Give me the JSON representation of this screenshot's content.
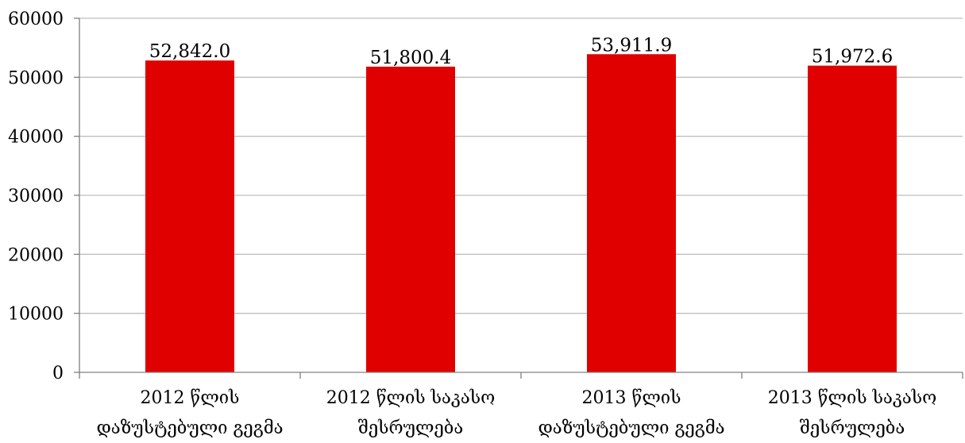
{
  "chart_data": {
    "type": "bar",
    "title": "",
    "xlabel": "",
    "ylabel": "",
    "categories": [
      [
        "2012 წლის",
        "დაზუსტებული გეგმა"
      ],
      [
        "2012 წლის საკასო",
        "შესრულება"
      ],
      [
        "2013 წლის",
        "დაზუსტებული გეგმა"
      ],
      [
        "2013 წლის საკასო",
        "შესრულება"
      ]
    ],
    "values": [
      52842.0,
      51800.4,
      53911.9,
      51972.6
    ],
    "value_labels": [
      "52,842.0",
      "51,800.4",
      "53,911.9",
      "51,972.6"
    ],
    "ylim": [
      0,
      60000
    ],
    "yticks": [
      0,
      10000,
      20000,
      30000,
      40000,
      50000,
      60000
    ],
    "grid": true,
    "legend": "none",
    "colors": {
      "bar": "#E00000",
      "grid": "#BFBFBF",
      "axis": "#808080"
    }
  }
}
